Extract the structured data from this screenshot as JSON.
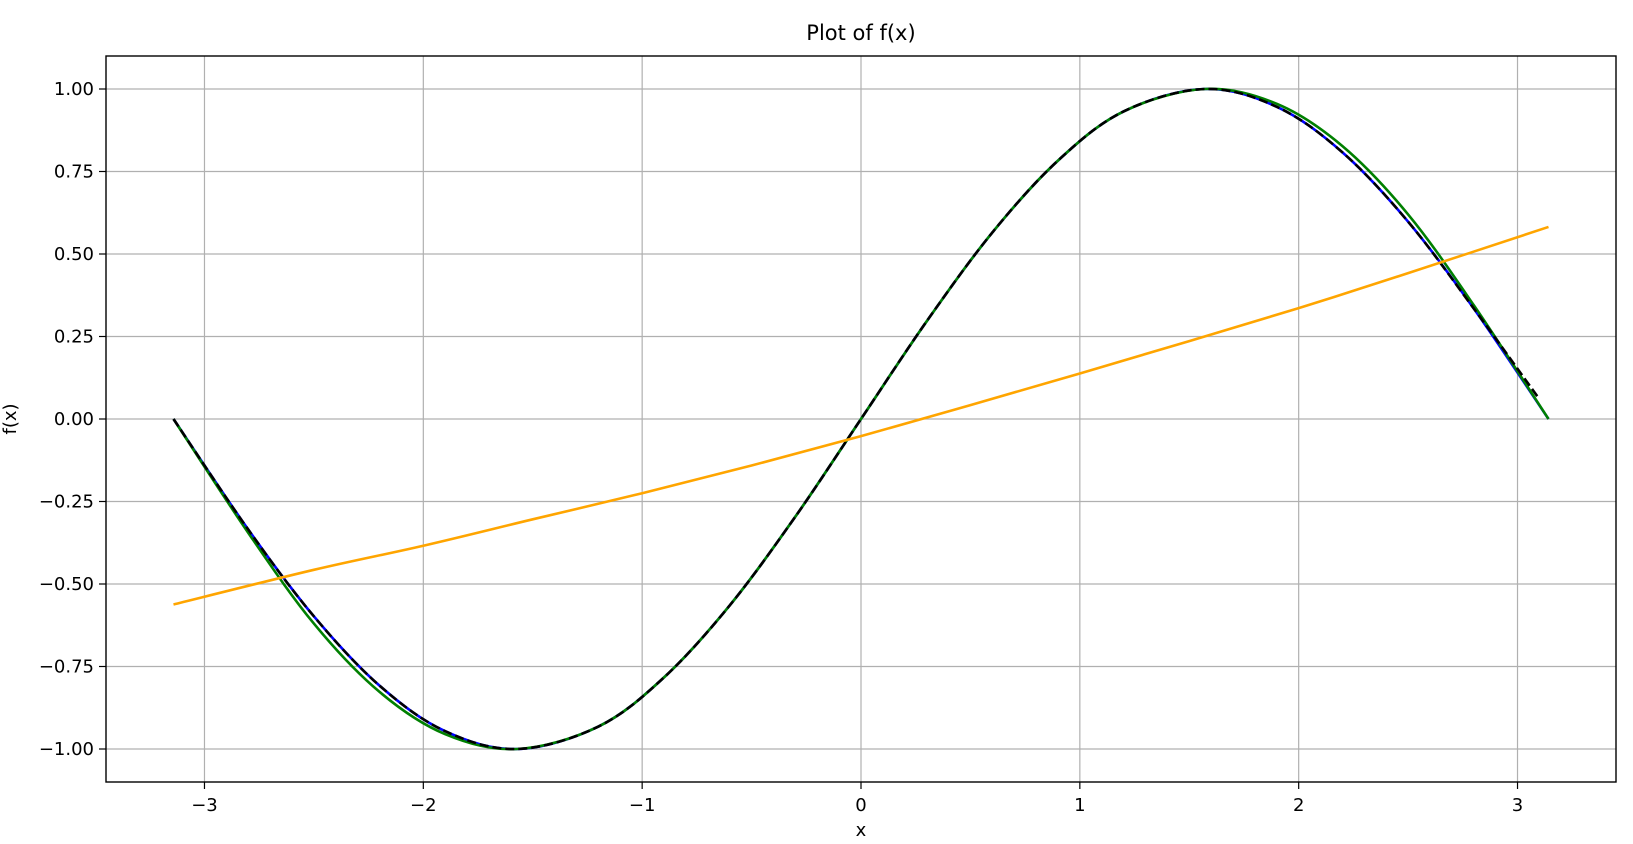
{
  "chart_data": {
    "type": "line",
    "title": "Plot of f(x)",
    "xlabel": "x",
    "ylabel": "f(x)",
    "xlim": [
      -3.45,
      3.45
    ],
    "ylim": [
      -1.1,
      1.1
    ],
    "grid": true,
    "xticks": [
      -3,
      -2,
      -1,
      0,
      1,
      2,
      3
    ],
    "xtick_labels": [
      "−3",
      "−2",
      "−1",
      "0",
      "1",
      "2",
      "3"
    ],
    "yticks": [
      -1.0,
      -0.75,
      -0.5,
      -0.25,
      0.0,
      0.25,
      0.5,
      0.75,
      1.0
    ],
    "ytick_labels": [
      "−1.00",
      "−0.75",
      "−0.50",
      "−0.25",
      "0.00",
      "0.25",
      "0.50",
      "0.75",
      "1.00"
    ],
    "series": [
      {
        "color": "#0000ff",
        "style": "solid",
        "x": [
          -3.1416,
          -2.8,
          -2.5,
          -2.2,
          -1.9,
          -1.5708,
          -1.2,
          -0.9,
          -0.6,
          -0.3,
          0.0,
          0.3,
          0.6,
          0.9,
          1.2,
          1.5708,
          1.9,
          2.2,
          2.5,
          2.8,
          3.1416
        ],
        "y": [
          0.0,
          -0.335,
          -0.598,
          -0.808,
          -0.946,
          -1.0,
          -0.932,
          -0.783,
          -0.565,
          -0.296,
          0.0,
          0.296,
          0.565,
          0.783,
          0.932,
          1.0,
          0.946,
          0.808,
          0.598,
          0.335,
          0.0
        ]
      },
      {
        "color": "#008000",
        "style": "solid",
        "x": [
          -3.1416,
          -2.8,
          -2.5,
          -2.2,
          -1.9,
          -1.5708,
          -1.2,
          -0.9,
          -0.6,
          -0.3,
          0.0,
          0.3,
          0.6,
          0.9,
          1.2,
          1.5708,
          1.9,
          2.2,
          2.5,
          2.8,
          3.1416
        ],
        "y": [
          0.0,
          -0.345,
          -0.62,
          -0.827,
          -0.955,
          -1.0,
          -0.932,
          -0.783,
          -0.565,
          -0.296,
          0.0,
          0.296,
          0.565,
          0.783,
          0.932,
          1.0,
          0.955,
          0.827,
          0.62,
          0.345,
          0.0
        ]
      },
      {
        "color": "#000000",
        "style": "dashed",
        "x": [
          -3.1416,
          -2.8,
          -2.5,
          -2.2,
          -1.9,
          -1.5708,
          -1.2,
          -0.9,
          -0.6,
          -0.3,
          0.0,
          0.3,
          0.6,
          0.9,
          1.2,
          1.5708,
          1.9,
          2.2,
          2.5,
          2.8,
          3.1
        ],
        "y": [
          0.0,
          -0.335,
          -0.598,
          -0.808,
          -0.946,
          -1.0,
          -0.932,
          -0.783,
          -0.565,
          -0.296,
          0.0,
          0.296,
          0.565,
          0.783,
          0.932,
          1.0,
          0.946,
          0.808,
          0.598,
          0.335,
          0.06
        ]
      },
      {
        "color": "#ffa500",
        "style": "solid",
        "x": [
          -3.1416,
          -2.5,
          -2.0,
          -1.5,
          -1.0,
          -0.5,
          0.0,
          0.5,
          1.0,
          1.5,
          2.0,
          2.5,
          3.1416
        ],
        "y": [
          -0.562,
          -0.457,
          -0.384,
          -0.304,
          -0.225,
          -0.141,
          -0.052,
          0.042,
          0.138,
          0.236,
          0.336,
          0.442,
          0.582
        ]
      }
    ]
  }
}
